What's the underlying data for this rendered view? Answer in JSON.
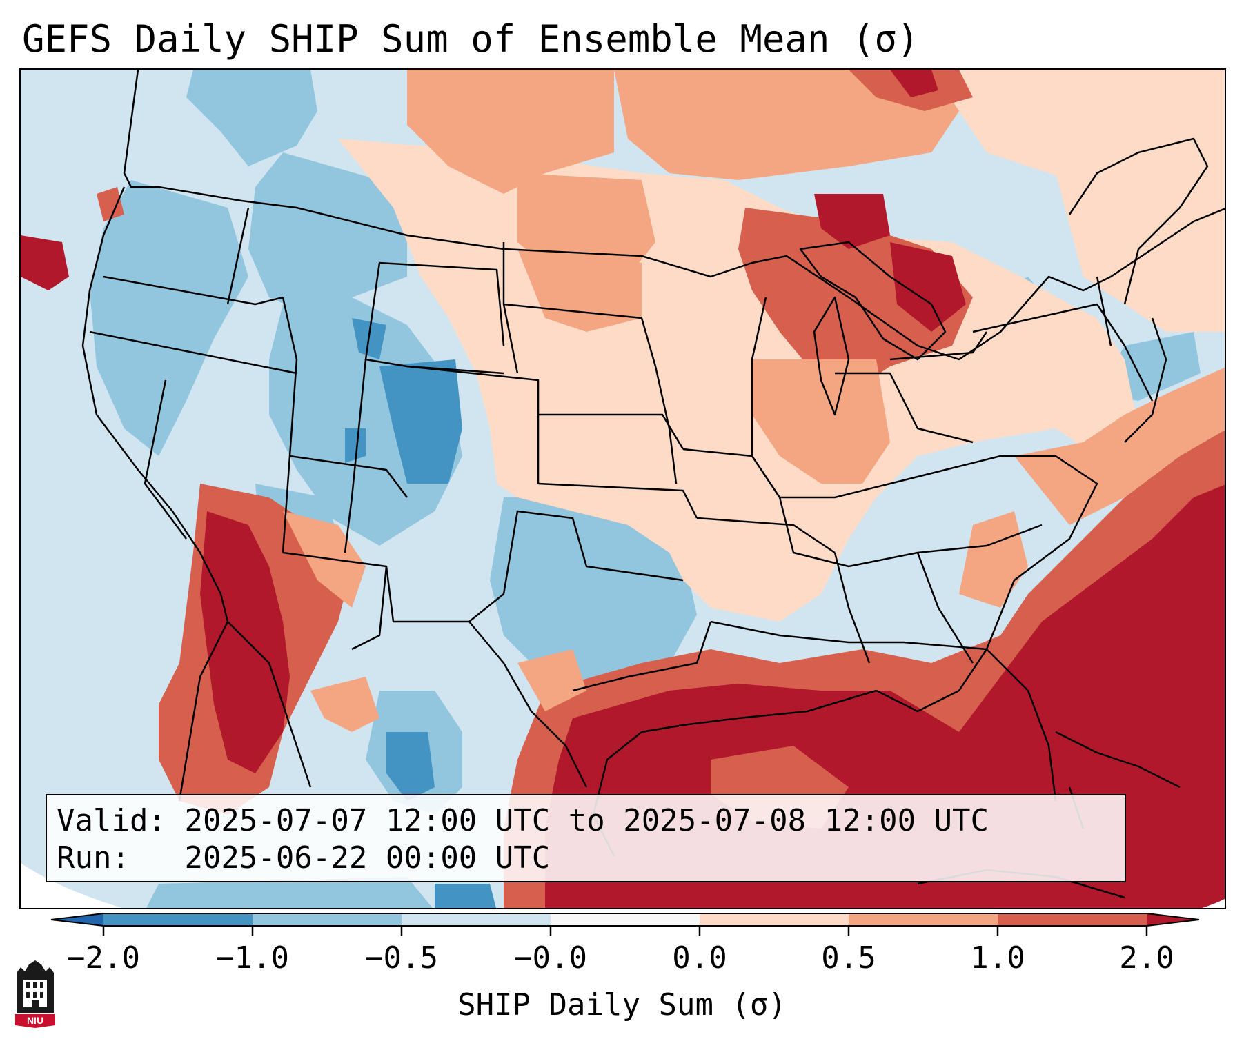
{
  "figure": {
    "title": "GEFS Daily SHIP Sum of Ensemble Mean (σ)"
  },
  "info_box": {
    "valid_label": "Valid:",
    "valid_value": "2025-07-07 12:00 UTC to 2025-07-08 12:00 UTC",
    "run_label": "Run:",
    "run_value": "2025-06-22 00:00 UTC"
  },
  "colorbar": {
    "label": "SHIP Daily Sum (σ)",
    "ticks": [
      "−2.0",
      "−1.0",
      "−0.5",
      "−0.0",
      "0.0",
      "0.5",
      "1.0",
      "2.0"
    ],
    "bin_colors": [
      "#4393c3",
      "#92c5de",
      "#d1e5f0",
      "#f7f7f7",
      "#fddbc7",
      "#f4a582",
      "#d6604d"
    ],
    "under_color": "#2166ac",
    "over_color": "#b2182b",
    "extend": "both"
  },
  "logo": {
    "text": "NIU"
  },
  "colors": {
    "ocean_neutral": "#d1e5f0",
    "strong_positive": "#b2182b",
    "moderate_positive": "#d6604d",
    "weak_positive": "#f4a582",
    "slight_positive": "#fddbc7",
    "slight_negative": "#d1e5f0",
    "weak_negative": "#92c5de",
    "moderate_negative": "#4393c3",
    "borders": "#000000"
  }
}
